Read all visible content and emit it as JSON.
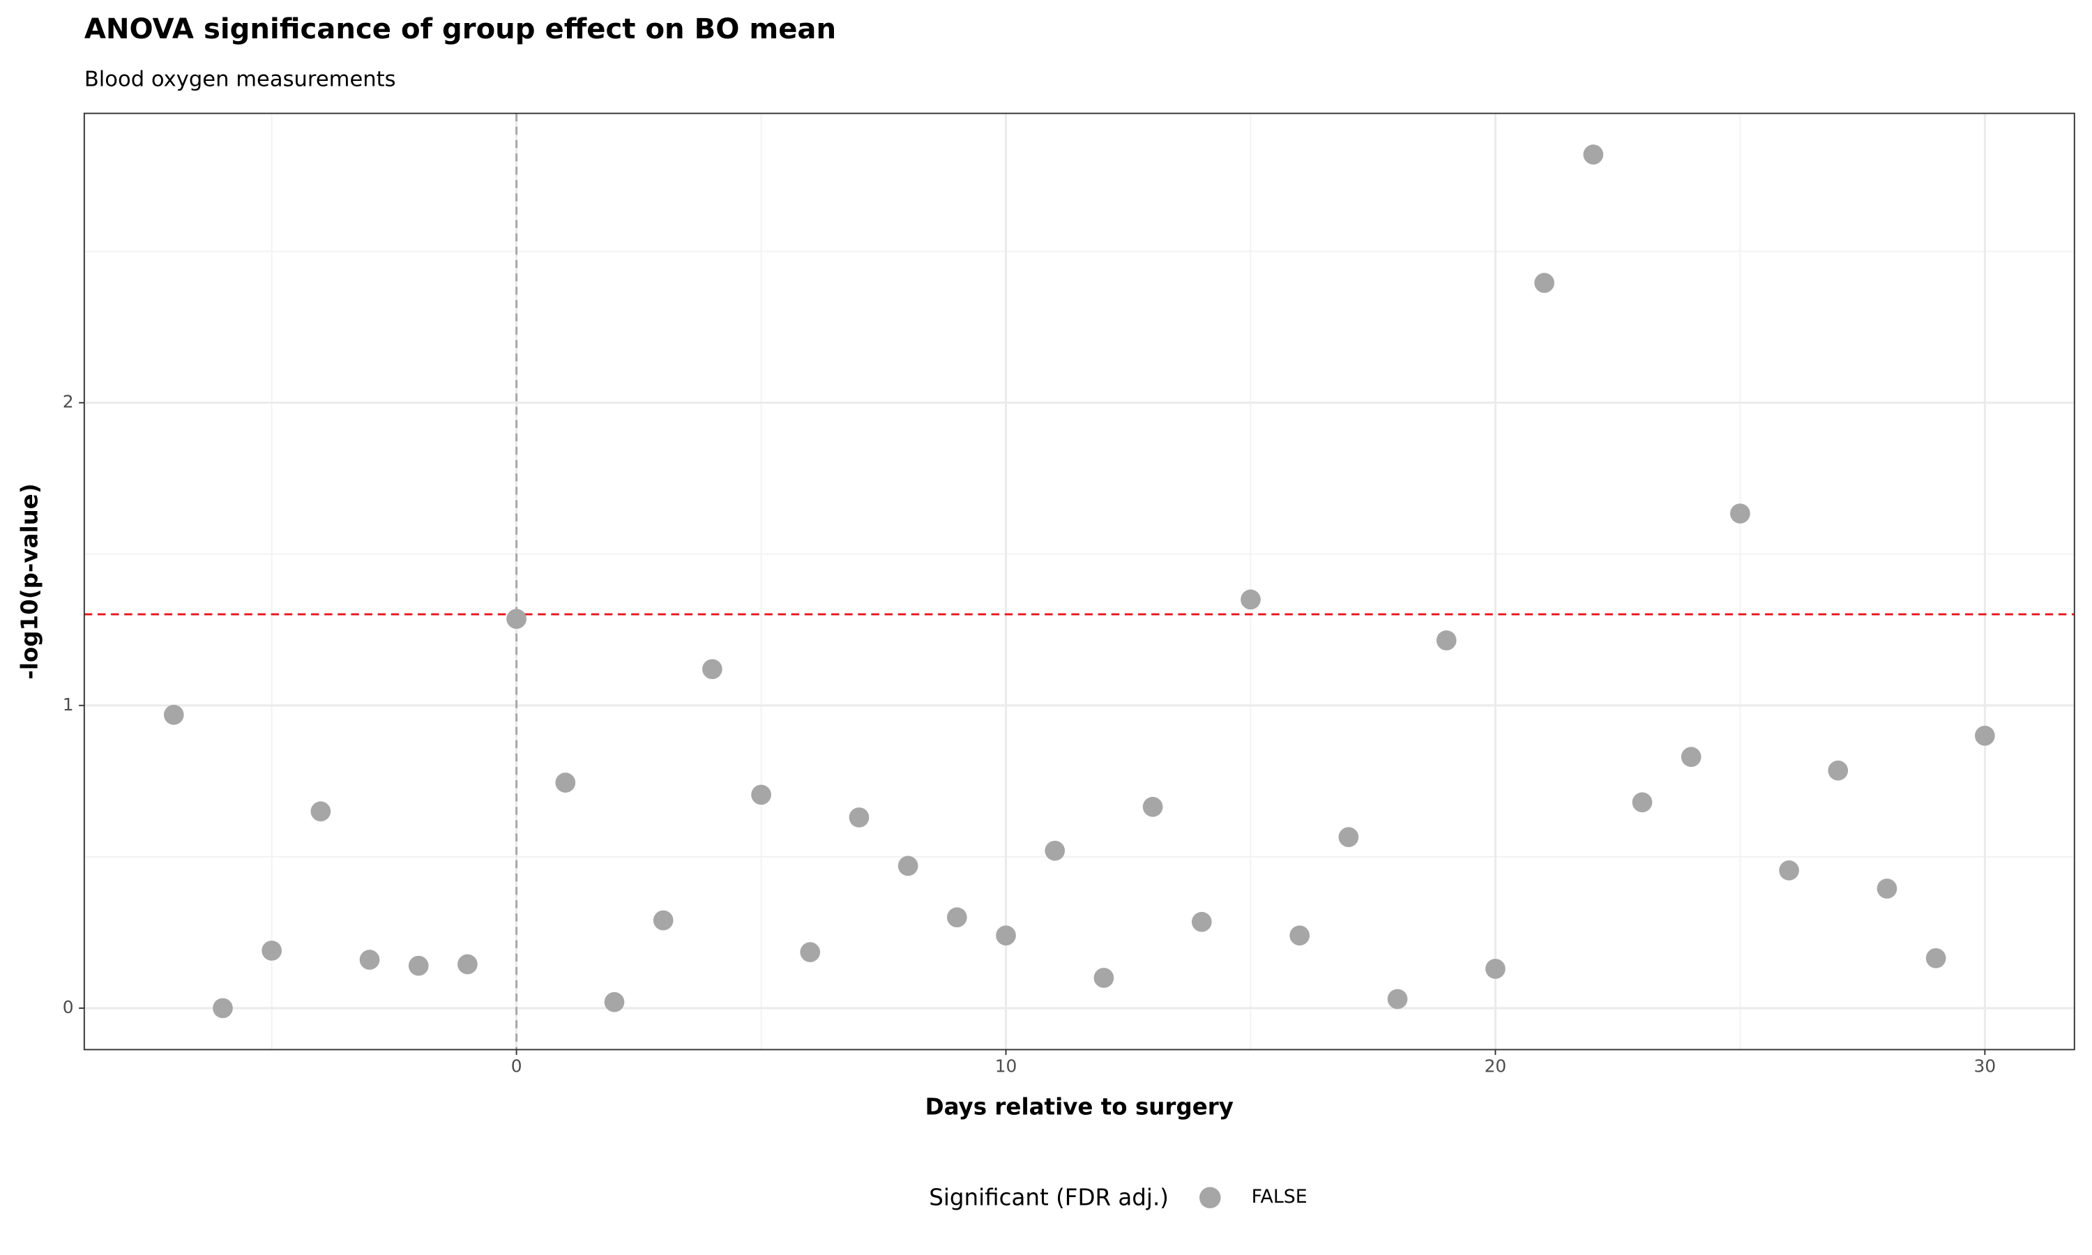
{
  "chart_data": {
    "type": "scatter",
    "title": "ANOVA significance of group effect on BO mean",
    "subtitle": "Blood oxygen measurements",
    "x_label": "Days relative to surgery",
    "y_label": "-log10(p-value)",
    "legend_title": "Significant (FDR adj.)",
    "legend_position": "bottom",
    "x": [
      -7,
      -6,
      -5,
      -4,
      -3,
      -2,
      -1,
      0,
      1,
      2,
      3,
      4,
      5,
      6,
      7,
      8,
      9,
      10,
      11,
      12,
      13,
      14,
      15,
      16,
      17,
      18,
      19,
      20,
      21,
      22,
      23,
      24,
      25,
      26,
      27,
      28,
      29,
      30
    ],
    "series": [
      {
        "name": "FALSE",
        "color": "#a6a6a6",
        "values": [
          0.969,
          0.0,
          0.19,
          0.65,
          0.16,
          0.14,
          0.145,
          1.286,
          0.745,
          0.02,
          0.29,
          1.12,
          0.705,
          0.185,
          0.63,
          0.47,
          0.3,
          0.24,
          0.52,
          0.1,
          0.665,
          0.285,
          1.35,
          0.24,
          0.565,
          0.03,
          1.215,
          0.13,
          2.396,
          2.82,
          0.68,
          0.83,
          1.634,
          0.455,
          0.785,
          0.395,
          0.165,
          0.9
        ]
      }
    ],
    "xlim": [
      -8.83,
      31.83
    ],
    "ylim": [
      -0.137,
      2.956
    ],
    "xticks": [
      0,
      10,
      20,
      30
    ],
    "yticks": [
      0,
      1,
      2
    ],
    "x_minor_grid": [
      -5,
      5,
      15,
      25
    ],
    "y_minor_grid": [
      0.5,
      1.5,
      2.5
    ],
    "grid": true,
    "hline": {
      "value": 1.301,
      "color": "#e8141c"
    },
    "vline": {
      "value": 0,
      "color": "#a6a6a6"
    }
  }
}
